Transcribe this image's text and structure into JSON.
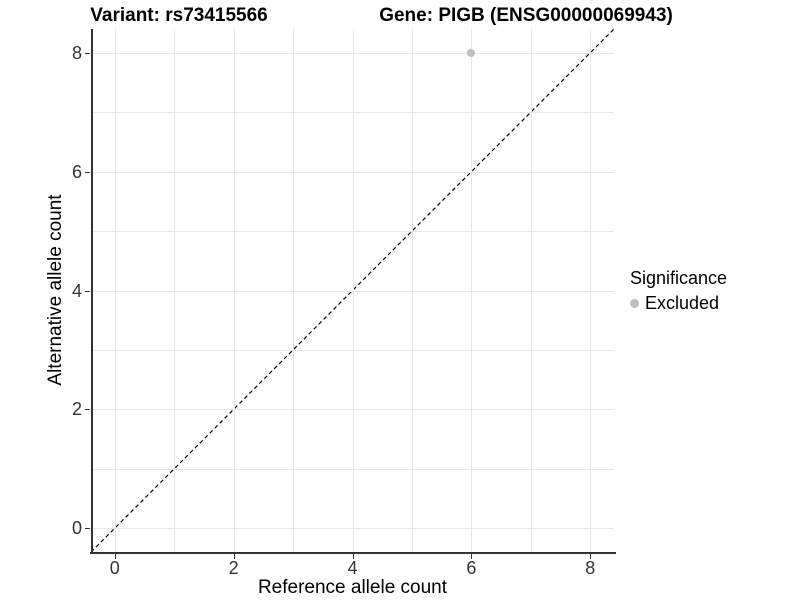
{
  "title": {
    "variant": "Variant: rs73415566",
    "gene": "Gene: PIGB (ENSG00000069943)"
  },
  "chart_data": {
    "type": "scatter",
    "xlabel": "Reference allele count",
    "ylabel": "Alternative allele count",
    "xlim": [
      -0.4,
      8.4
    ],
    "ylim": [
      -0.4,
      8.4
    ],
    "x_ticks": [
      0,
      2,
      4,
      6,
      8
    ],
    "y_ticks": [
      0,
      2,
      4,
      6,
      8
    ],
    "grid_step": 1,
    "grid_range": [
      0,
      8
    ],
    "points": [
      {
        "x": 6,
        "y": 8,
        "significance": "Excluded"
      }
    ],
    "diagonal_line": {
      "style": "dashed",
      "equation": "y = x"
    },
    "legend": {
      "title": "Significance",
      "position": "right",
      "items": [
        {
          "label": "Excluded",
          "color": "#bebebe"
        }
      ]
    },
    "colors": {
      "point": "#bebebe",
      "grid": "#e6e6e6",
      "axis": "#333333",
      "diagonal": "#000000",
      "tick_text": "#333333"
    }
  }
}
